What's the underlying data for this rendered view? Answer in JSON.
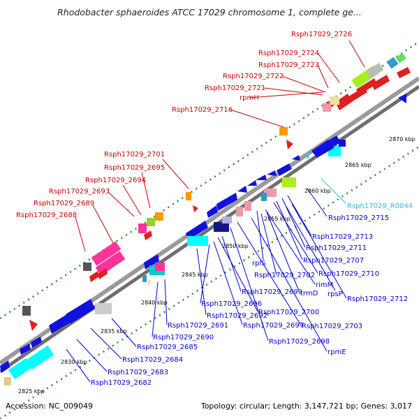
{
  "title": "Rhodobacter sphaeroides ATCC 17029 chromosome 1, complete ge...",
  "footer": {
    "accession": "Accession: NC_009049",
    "summary": "Topology: circular; Length: 3,147,721 bp; Genes: 3,017"
  },
  "colors": {
    "forward_label": "#cc0000",
    "reverse_label": "#0000cc",
    "rna_label": "#33bbdd",
    "backbone": "#999999",
    "tick": "#2a8a2a"
  },
  "kbp_ticks": [
    "2825 kbp",
    "2830 kbp",
    "2835 kbp",
    "2840 kbp",
    "2845 kbp",
    "2850 kbp",
    "2855 kbp",
    "2860 kbp",
    "2865 kbp",
    "2870 kbp"
  ],
  "top_labels": [
    "Rsph17029_2726",
    "Rsph17029_2724",
    "Rsph17029_2723",
    "Rsph17029_2722",
    "Rsph17029_2721",
    "rpmH",
    "Rsph17029_2716",
    "Rsph17029_2701",
    "Rsph17029_2695",
    "Rsph17029_2694",
    "Rsph17029_2693",
    "Rsph17029_2689",
    "Rsph17029_2688"
  ],
  "bottom_labels": [
    "Rsph17029_R0044",
    "Rsph17029_2715",
    "Rsph17029_2713",
    "Rsph17029_2711",
    "Rsph17029_2707",
    "rplS",
    "Rsph17029_2702",
    "Rsph17029_2710",
    "rimM",
    "trmD",
    "rpsP",
    "Rsph17029_2712",
    "Rsph17029_2699",
    "Rsph17029_2696",
    "Rsph17029_2692",
    "Rsph17029_2700",
    "Rsph17029_2697",
    "Rsph17029_2703",
    "Rsph17029_2691",
    "Rsph17029_2690",
    "Rsph17029_2698",
    "rpmE",
    "Rsph17029_2685",
    "Rsph17029_2684",
    "Rsph17029_2683",
    "Rsph17029_2682"
  ]
}
